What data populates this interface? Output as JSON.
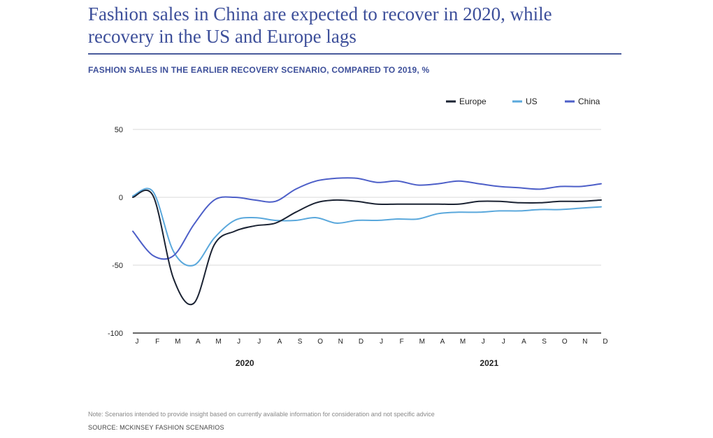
{
  "title": "Fashion sales in China are expected to recover in 2020, while recovery in the US and Europe lags",
  "subtitle": "FASHION SALES IN THE EARLIER RECOVERY SCENARIO, COMPARED TO 2019, %",
  "note": "Note: Scenarios intended to provide insight based on currently available information for consideration and not specific advice",
  "source": "SOURCE: MCKINSEY FASHION SCENARIOS",
  "chart_data": {
    "type": "line",
    "title": "FASHION SALES IN THE EARLIER RECOVERY SCENARIO, COMPARED TO 2019, %",
    "xlabel": "",
    "ylabel": "",
    "ylim": [
      -100,
      50
    ],
    "yticks": [
      50,
      0,
      -50,
      -100
    ],
    "grid": true,
    "legend_position": "top-right",
    "categories": [
      "J",
      "F",
      "M",
      "A",
      "M",
      "J",
      "J",
      "A",
      "S",
      "O",
      "N",
      "D",
      "J",
      "F",
      "M",
      "A",
      "M",
      "J",
      "J",
      "A",
      "S",
      "O",
      "N",
      "D"
    ],
    "year_labels": [
      {
        "label": "2020",
        "center_index": 5.5
      },
      {
        "label": "2021",
        "center_index": 17.5
      }
    ],
    "series": [
      {
        "name": "Europe",
        "color": "#1b2333",
        "values": [
          0,
          1,
          -60,
          -78,
          -35,
          -25,
          -21,
          -19,
          -11,
          -4,
          -2,
          -3,
          -5,
          -5,
          -5,
          -5,
          -5,
          -3,
          -3,
          -4,
          -4,
          -3,
          -3,
          -2
        ]
      },
      {
        "name": "US",
        "color": "#5aa8dc",
        "values": [
          1,
          4,
          -40,
          -50,
          -30,
          -17,
          -15,
          -17,
          -17,
          -15,
          -19,
          -17,
          -17,
          -16,
          -16,
          -12,
          -11,
          -11,
          -10,
          -10,
          -9,
          -9,
          -8,
          -7
        ]
      },
      {
        "name": "China",
        "color": "#4d5fc8",
        "values": [
          -25,
          -43,
          -43,
          -20,
          -2,
          0,
          -2,
          -3,
          6,
          12,
          14,
          14,
          11,
          12,
          9,
          10,
          12,
          10,
          8,
          7,
          6,
          8,
          8,
          10
        ]
      }
    ]
  }
}
